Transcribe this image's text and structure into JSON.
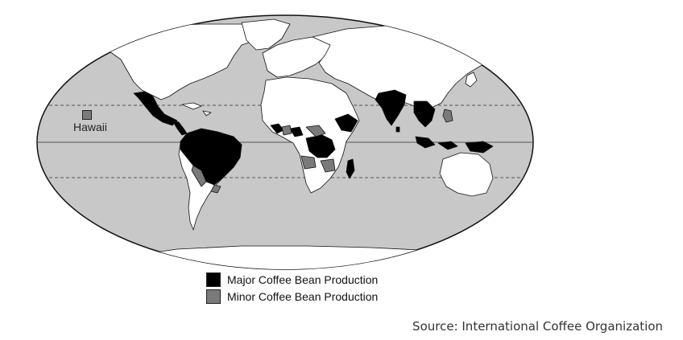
{
  "map": {
    "ocean_color": "#c8c8c8",
    "land_color": "#ffffff",
    "major_color": "#000000",
    "minor_color": "#7a7a7a",
    "callout": {
      "label": "Hawaii",
      "category": "minor"
    }
  },
  "legend": {
    "items": [
      {
        "label": "Major Coffee Bean Production",
        "color": "#000000"
      },
      {
        "label": "Minor Coffee Bean Production",
        "color": "#7a7a7a"
      }
    ]
  },
  "source": "Source: International Coffee Organization"
}
